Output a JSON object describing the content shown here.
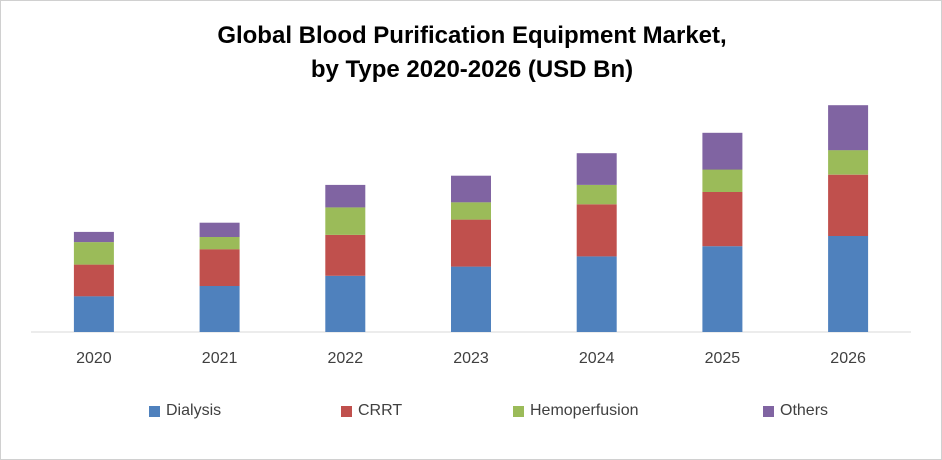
{
  "chart_data": {
    "type": "bar",
    "stacked": true,
    "title": "Global Blood Purification Equipment Market,",
    "subtitle": "by Type 2020-2026 (USD Bn)",
    "categories": [
      "2020",
      "2021",
      "2022",
      "2023",
      "2024",
      "2025",
      "2026"
    ],
    "series": [
      {
        "name": "Dialysis",
        "color": "#4F81BD",
        "values": [
          35,
          45,
          55,
          64,
          74,
          84,
          94
        ]
      },
      {
        "name": "CRRT",
        "color": "#C0504D",
        "values": [
          31,
          36,
          40,
          46,
          51,
          53,
          60
        ]
      },
      {
        "name": "Hemoperfusion",
        "color": "#9BBB59",
        "values": [
          22,
          12,
          27,
          17,
          19,
          22,
          24
        ]
      },
      {
        "name": "Others",
        "color": "#8064A2",
        "values": [
          10,
          14,
          22,
          26,
          31,
          36,
          44
        ]
      }
    ],
    "ylim": [
      0,
      230
    ],
    "grid": false,
    "legend": "bottom"
  }
}
